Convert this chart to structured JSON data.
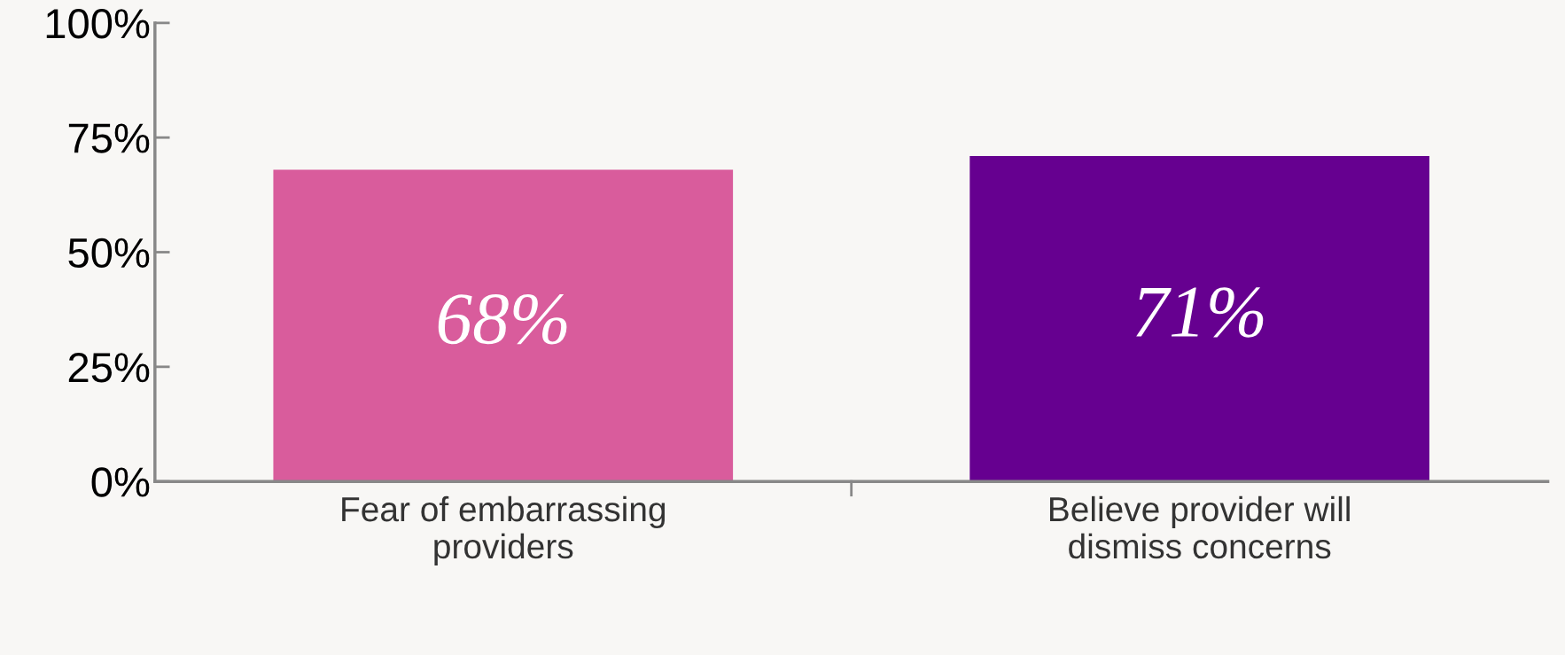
{
  "chart_data": {
    "type": "bar",
    "categories": [
      "Fear of embarrassing\nproviders",
      "Believe provider will\ndismiss concerns"
    ],
    "values": [
      68,
      71
    ],
    "colors": [
      "#d95c9c",
      "#660090"
    ],
    "value_labels": [
      "68%",
      "71%"
    ],
    "ylim": [
      0,
      100
    ],
    "yticks": [
      {
        "value": 0,
        "label": "0%"
      },
      {
        "value": 25,
        "label": "25%"
      },
      {
        "value": 50,
        "label": "50%"
      },
      {
        "value": 75,
        "label": "75%"
      },
      {
        "value": 100,
        "label": "100%"
      }
    ],
    "grid": false
  }
}
